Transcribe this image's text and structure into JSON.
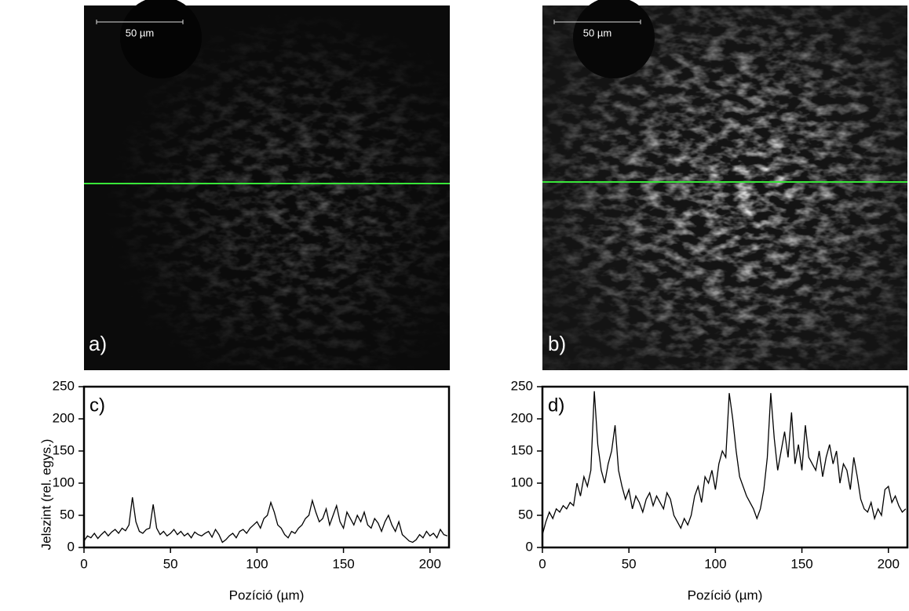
{
  "images": [
    {
      "label": "a)",
      "scale_bar": "50 µm"
    },
    {
      "label": "b)",
      "scale_bar": "50 µm"
    }
  ],
  "chart_data": [
    {
      "type": "line",
      "annotation": "c)",
      "x_label": "Pozíció (µm)",
      "y_label": "Jelszint (rel. egys.)",
      "color": "#000000",
      "xlim": [
        0,
        211
      ],
      "ylim": [
        0,
        250
      ],
      "xticks": [
        0,
        50,
        100,
        150,
        200
      ],
      "yticks": [
        0,
        50,
        100,
        150,
        200,
        250
      ],
      "x": [
        0,
        2,
        4,
        6,
        8,
        10,
        12,
        14,
        16,
        18,
        20,
        22,
        24,
        26,
        28,
        30,
        32,
        34,
        36,
        38,
        40,
        42,
        44,
        46,
        48,
        50,
        52,
        54,
        56,
        58,
        60,
        62,
        64,
        66,
        68,
        70,
        72,
        74,
        76,
        78,
        80,
        82,
        84,
        86,
        88,
        90,
        92,
        94,
        96,
        98,
        100,
        102,
        104,
        106,
        108,
        110,
        112,
        114,
        116,
        118,
        120,
        122,
        124,
        126,
        128,
        130,
        132,
        134,
        136,
        138,
        140,
        142,
        144,
        146,
        148,
        150,
        152,
        154,
        156,
        158,
        160,
        162,
        164,
        166,
        168,
        170,
        172,
        174,
        176,
        178,
        180,
        182,
        184,
        186,
        188,
        190,
        192,
        194,
        196,
        198,
        200,
        202,
        204,
        206,
        208,
        210
      ],
      "values": [
        10,
        18,
        15,
        22,
        14,
        20,
        25,
        18,
        24,
        28,
        22,
        30,
        26,
        35,
        78,
        40,
        25,
        22,
        28,
        30,
        67,
        30,
        20,
        25,
        18,
        22,
        28,
        20,
        25,
        18,
        22,
        15,
        24,
        20,
        18,
        22,
        25,
        16,
        28,
        20,
        8,
        12,
        18,
        22,
        15,
        25,
        28,
        22,
        30,
        35,
        40,
        30,
        45,
        50,
        70,
        55,
        35,
        30,
        20,
        15,
        25,
        22,
        30,
        35,
        45,
        50,
        73,
        55,
        40,
        45,
        60,
        35,
        50,
        65,
        40,
        30,
        55,
        45,
        35,
        50,
        40,
        55,
        35,
        30,
        45,
        38,
        25,
        40,
        50,
        35,
        25,
        40,
        20,
        15,
        10,
        8,
        12,
        20,
        15,
        25,
        18,
        22,
        15,
        28,
        20,
        18
      ]
    },
    {
      "type": "line",
      "annotation": "d)",
      "x_label": "Pozíció (µm)",
      "color": "#000000",
      "xlim": [
        0,
        211
      ],
      "ylim": [
        0,
        250
      ],
      "xticks": [
        0,
        50,
        100,
        150,
        200
      ],
      "yticks": [
        0,
        50,
        100,
        150,
        200,
        250
      ],
      "x": [
        0,
        2,
        4,
        6,
        8,
        10,
        12,
        14,
        16,
        18,
        20,
        22,
        24,
        26,
        28,
        30,
        32,
        34,
        36,
        38,
        40,
        42,
        44,
        46,
        48,
        50,
        52,
        54,
        56,
        58,
        60,
        62,
        64,
        66,
        68,
        70,
        72,
        74,
        76,
        78,
        80,
        82,
        84,
        86,
        88,
        90,
        92,
        94,
        96,
        98,
        100,
        102,
        104,
        106,
        108,
        110,
        112,
        114,
        116,
        118,
        120,
        122,
        124,
        126,
        128,
        130,
        132,
        134,
        136,
        138,
        140,
        142,
        144,
        146,
        148,
        150,
        152,
        154,
        156,
        158,
        160,
        162,
        164,
        166,
        168,
        170,
        172,
        174,
        176,
        178,
        180,
        182,
        184,
        186,
        188,
        190,
        192,
        194,
        196,
        198,
        200,
        202,
        204,
        206,
        208,
        210
      ],
      "values": [
        20,
        40,
        55,
        45,
        60,
        55,
        65,
        60,
        70,
        65,
        100,
        80,
        110,
        95,
        120,
        243,
        160,
        120,
        100,
        130,
        150,
        190,
        120,
        95,
        75,
        90,
        60,
        80,
        70,
        55,
        75,
        85,
        65,
        80,
        70,
        60,
        85,
        75,
        50,
        40,
        30,
        45,
        35,
        50,
        80,
        95,
        70,
        110,
        100,
        120,
        90,
        130,
        150,
        140,
        240,
        200,
        150,
        110,
        95,
        80,
        70,
        60,
        45,
        60,
        90,
        140,
        240,
        170,
        120,
        150,
        180,
        140,
        210,
        130,
        160,
        120,
        190,
        140,
        130,
        120,
        150,
        110,
        140,
        160,
        130,
        150,
        100,
        130,
        120,
        90,
        140,
        110,
        75,
        60,
        55,
        70,
        45,
        60,
        50,
        90,
        95,
        70,
        80,
        65,
        55,
        60
      ]
    }
  ]
}
